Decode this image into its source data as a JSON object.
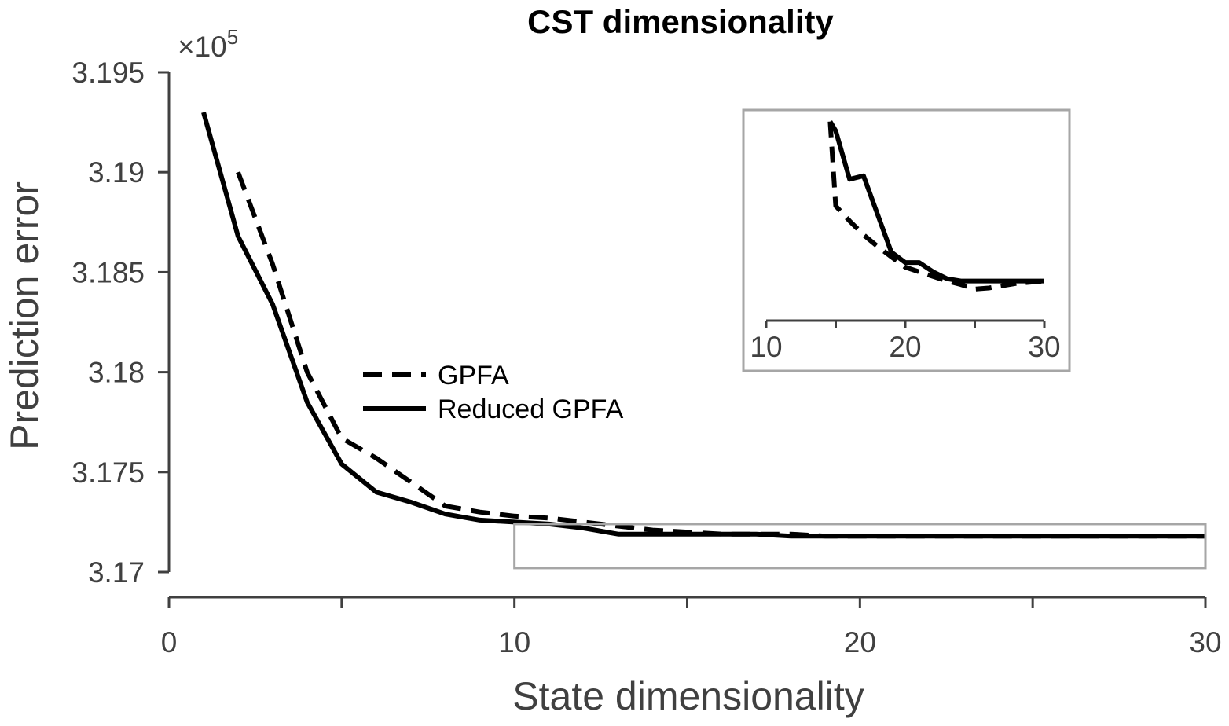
{
  "chart_data": [
    {
      "type": "line",
      "title": "CST dimensionality",
      "xlabel": "State dimensionality",
      "ylabel": "Prediction error",
      "y_multiplier": "×10",
      "y_multiplier_exponent": "5",
      "xlim": [
        0,
        30
      ],
      "ylim": [
        3.17,
        3.195
      ],
      "x_ticks": [
        0,
        10,
        20,
        30
      ],
      "x_tick_labels": [
        "0",
        "10",
        "20",
        "30"
      ],
      "y_ticks": [
        3.17,
        3.175,
        3.18,
        3.185,
        3.19,
        3.195
      ],
      "y_tick_labels": [
        "3.17",
        "3.175",
        "3.18",
        "3.185",
        "3.19",
        "3.195"
      ],
      "grid": false,
      "legend_position": "center",
      "zoom_box": {
        "x": [
          10,
          30
        ],
        "y": [
          3.1702,
          3.1724
        ]
      },
      "series": [
        {
          "name": "GPFA",
          "style": "dashed",
          "color": "#000000",
          "x": [
            2,
            3,
            4,
            5,
            6,
            7,
            8,
            9,
            10,
            11,
            12,
            13,
            14,
            15,
            16,
            17,
            18,
            19,
            20,
            21,
            22,
            23,
            24,
            25,
            26,
            27,
            28,
            29,
            30
          ],
          "y": [
            3.19,
            3.1854,
            3.18,
            3.1767,
            3.1757,
            3.1745,
            3.1733,
            3.173,
            3.1728,
            3.1727,
            3.1725,
            3.1723,
            3.1721,
            3.172,
            3.1719,
            3.1719,
            3.1719,
            3.1718,
            3.1718,
            3.1718,
            3.1718,
            3.1718,
            3.1718,
            3.1718,
            3.1718,
            3.1718,
            3.1718,
            3.1718,
            3.1718
          ]
        },
        {
          "name": "Reduced GPFA",
          "style": "solid",
          "color": "#000000",
          "x": [
            1,
            2,
            3,
            4,
            5,
            6,
            7,
            8,
            9,
            10,
            11,
            12,
            13,
            14,
            15,
            16,
            17,
            18,
            19,
            20,
            21,
            22,
            23,
            24,
            25,
            26,
            27,
            28,
            29,
            30
          ],
          "y": [
            3.193,
            3.1868,
            3.1834,
            3.1785,
            3.1754,
            3.174,
            3.1735,
            3.1729,
            3.1726,
            3.1725,
            3.1724,
            3.1722,
            3.1719,
            3.1719,
            3.1719,
            3.1719,
            3.1719,
            3.1718,
            3.1718,
            3.1718,
            3.1718,
            3.1718,
            3.1718,
            3.1718,
            3.1718,
            3.1718,
            3.1718,
            3.1718,
            3.1718,
            3.1718
          ]
        }
      ]
    },
    {
      "type": "line",
      "title": "",
      "xlim": [
        10,
        30
      ],
      "x_ticks": [
        10,
        20,
        30
      ],
      "x_tick_labels": [
        "10",
        "20",
        "30"
      ],
      "ylim": [
        3.1716,
        3.1733
      ],
      "y_ticks": [],
      "grid": false,
      "series": [
        {
          "name": "GPFA",
          "style": "dashed",
          "color": "#000000",
          "x": [
            14.6,
            15,
            16,
            17,
            18,
            19,
            20,
            21,
            22,
            23,
            24,
            25,
            26,
            27,
            28,
            29,
            30
          ],
          "y": [
            3.1732,
            3.17247,
            3.17234,
            3.17222,
            3.17212,
            3.17203,
            3.17194,
            3.1719,
            3.17186,
            3.17182,
            3.17179,
            3.17175,
            3.17176,
            3.17178,
            3.1718,
            3.17181,
            3.17182
          ]
        },
        {
          "name": "Reduced GPFA",
          "style": "solid",
          "color": "#000000",
          "x": [
            14.6,
            15,
            16,
            17,
            18,
            19,
            20,
            21,
            22,
            23,
            24,
            25,
            26,
            27,
            28,
            29,
            30
          ],
          "y": [
            3.1732,
            3.17312,
            3.1727,
            3.17273,
            3.1724,
            3.17207,
            3.17198,
            3.17198,
            3.1719,
            3.17184,
            3.17182,
            3.17182,
            3.17182,
            3.17182,
            3.17182,
            3.17182,
            3.17182
          ]
        }
      ]
    }
  ]
}
